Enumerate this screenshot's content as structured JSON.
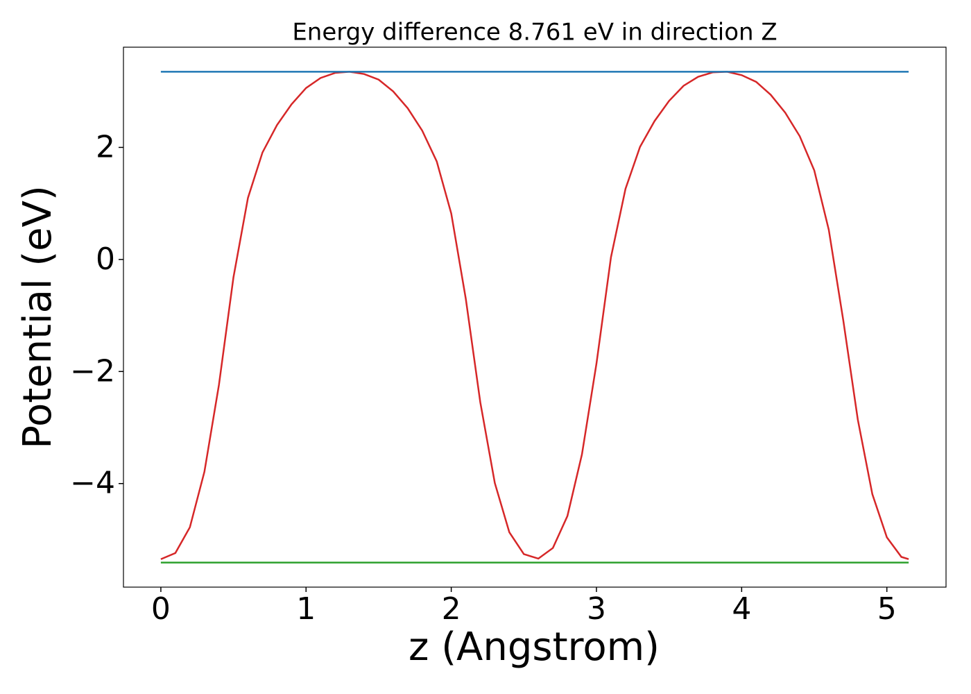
{
  "chart_data": {
    "type": "line",
    "title": "Energy difference 8.761 eV in direction Z",
    "xlabel": "z (Angstrom)",
    "ylabel": "Potential (eV)",
    "xlim": [
      -0.2575,
      5.4075
    ],
    "ylim": [
      -5.849,
      3.789
    ],
    "xticks": [
      0,
      1,
      2,
      3,
      4,
      5
    ],
    "yticks": [
      {
        "value": -4,
        "label": "−4"
      },
      {
        "value": -2,
        "label": "−2"
      },
      0,
      2
    ],
    "grid": false,
    "series": [
      {
        "color": "#d62728",
        "x": [
          0,
          0.1,
          0.2,
          0.3,
          0.4,
          0.5,
          0.6,
          0.7,
          0.8,
          0.9,
          1.0,
          1.1,
          1.2,
          1.3,
          1.4,
          1.5,
          1.6,
          1.7,
          1.8,
          1.9,
          2.0,
          2.1,
          2.2,
          2.3,
          2.4,
          2.5,
          2.6,
          2.7,
          2.8,
          2.9,
          3.0,
          3.1,
          3.2,
          3.3,
          3.4,
          3.5,
          3.6,
          3.7,
          3.8,
          3.9,
          4.0,
          4.1,
          4.2,
          4.3,
          4.4,
          4.5,
          4.6,
          4.7,
          4.8,
          4.9,
          5.0,
          5.1,
          5.15
        ],
        "values": [
          -5.35,
          -5.24,
          -4.78,
          -3.79,
          -2.24,
          -0.32,
          1.1,
          1.91,
          2.4,
          2.77,
          3.06,
          3.24,
          3.33,
          3.35,
          3.31,
          3.21,
          3.0,
          2.7,
          2.3,
          1.75,
          0.82,
          -0.7,
          -2.55,
          -3.99,
          -4.87,
          -5.26,
          -5.34,
          -5.15,
          -4.58,
          -3.48,
          -1.86,
          0.04,
          1.26,
          2.01,
          2.47,
          2.83,
          3.1,
          3.26,
          3.34,
          3.35,
          3.29,
          3.17,
          2.94,
          2.62,
          2.2,
          1.59,
          0.53,
          -1.09,
          -2.86,
          -4.19,
          -4.96,
          -5.31,
          -5.35
        ]
      },
      {
        "color": "#1f77b4",
        "x": [
          0,
          5.15
        ],
        "values": [
          3.35,
          3.35
        ]
      },
      {
        "color": "#2ca02c",
        "x": [
          0,
          5.15
        ],
        "values": [
          -5.41,
          -5.41
        ]
      }
    ]
  }
}
